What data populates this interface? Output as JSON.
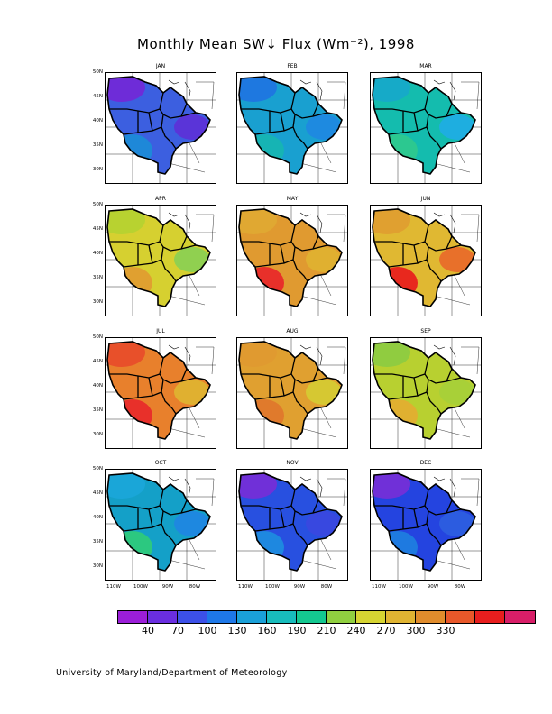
{
  "title": "Monthly Mean SW↓ Flux (Wm⁻²), 1998",
  "footer": "University of Maryland/Department of Meteorology",
  "lat_labels": [
    "50N",
    "45N",
    "40N",
    "35N",
    "30N"
  ],
  "lon_labels": [
    "110W",
    "100W",
    "90W",
    "80W"
  ],
  "panels": [
    {
      "month": "JAN",
      "fill": "#3c5fe0",
      "north": "#6e2cd8",
      "southwest": "#1e88d8",
      "east": "#5a34d8"
    },
    {
      "month": "FEB",
      "fill": "#19a0d0",
      "north": "#1e78e0",
      "southwest": "#16b4b4",
      "east": "#1e8ae0"
    },
    {
      "month": "MAR",
      "fill": "#14bcae",
      "north": "#16aac8",
      "southwest": "#2cc890",
      "east": "#1eaee0"
    },
    {
      "month": "APR",
      "fill": "#d6d030",
      "north": "#b8d230",
      "southwest": "#e0a030",
      "east": "#90d050"
    },
    {
      "month": "MAY",
      "fill": "#e09a30",
      "north": "#e0a832",
      "southwest": "#e8302a",
      "east": "#e0b030"
    },
    {
      "month": "JUN",
      "fill": "#e0b832",
      "north": "#e0a030",
      "southwest": "#e8281e",
      "east": "#e8702a"
    },
    {
      "month": "JUL",
      "fill": "#e8802c",
      "north": "#e8502a",
      "southwest": "#e8302a",
      "east": "#e0b030"
    },
    {
      "month": "AUG",
      "fill": "#e0a030",
      "north": "#e09a30",
      "southwest": "#e07a2c",
      "east": "#d6c832"
    },
    {
      "month": "SEP",
      "fill": "#b8d030",
      "north": "#90cc40",
      "southwest": "#e0b030",
      "east": "#a8d038"
    },
    {
      "month": "OCT",
      "fill": "#14a0c8",
      "north": "#1aa6d8",
      "southwest": "#2cc880",
      "east": "#1e88e0"
    },
    {
      "month": "NOV",
      "fill": "#2850e0",
      "north": "#7030d8",
      "southwest": "#1e88e0",
      "east": "#3848e0"
    },
    {
      "month": "DEC",
      "fill": "#2444e0",
      "north": "#7030d8",
      "southwest": "#1e7ae0",
      "east": "#2c5ce0"
    }
  ],
  "colorbar": {
    "colors": [
      "#9b1ed8",
      "#6a2ee0",
      "#3c50e8",
      "#1e78e8",
      "#1aa0d8",
      "#18bcbc",
      "#14c890",
      "#90d040",
      "#d6d432",
      "#e0b432",
      "#e08c2c",
      "#e8582a",
      "#e81e1e",
      "#d81e68"
    ],
    "labels": [
      "40",
      "70",
      "100",
      "130",
      "160",
      "190",
      "210",
      "240",
      "270",
      "300",
      "330"
    ]
  }
}
